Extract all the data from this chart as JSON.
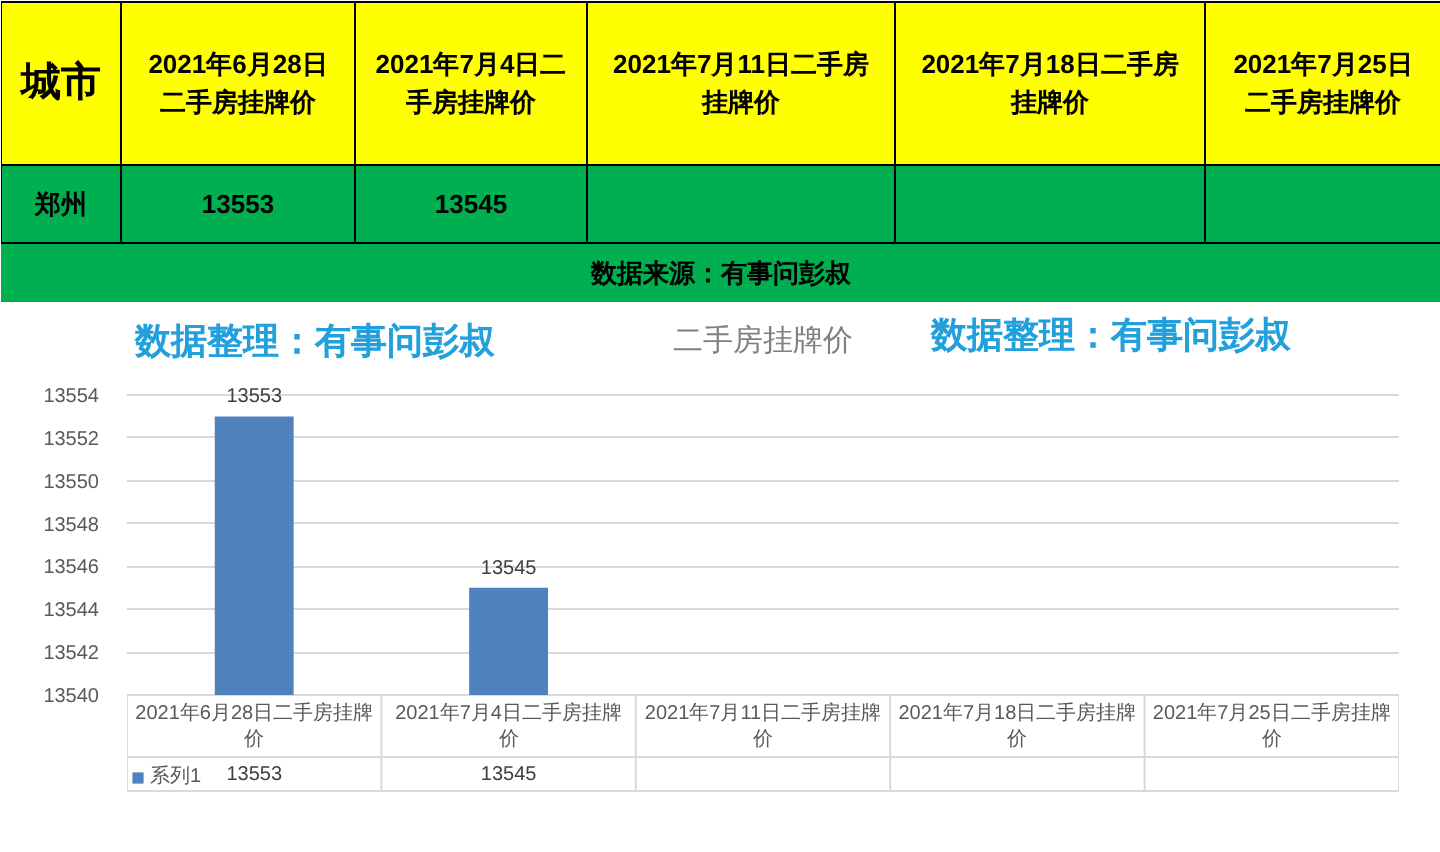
{
  "chart_data": [
    {
      "type": "other",
      "categories": [
        "2021年6月28日二手房挂牌价",
        "2021年7月4日二手房挂牌价",
        "2021年7月11日二手房挂牌价",
        "2021年7月18日二手房挂牌价",
        "2021年7月25日二手房挂牌价"
      ],
      "values": [
        13553,
        13545,
        null,
        null,
        null
      ],
      "data_labels": true,
      "annotations": [
        "城市",
        "郑州",
        "数据来源：有事问彭叔"
      ]
    },
    {
      "type": "bar",
      "title": "二手房挂牌价",
      "categories": [
        "2021年6月28日二手房挂牌价",
        "2021年7月4日二手房挂牌价",
        "2021年7月11日二手房挂牌价",
        "2021年7月18日二手房挂牌价",
        "2021年7月25日二手房挂牌价"
      ],
      "series": [
        {
          "name": "系列1",
          "color": "#4f81bd",
          "values": [
            13553,
            13545,
            null,
            null,
            null
          ],
          "value_labels": [
            "13553",
            "13545",
            null,
            null,
            null
          ]
        }
      ],
      "ylim": [
        13540,
        13554
      ],
      "yticks": [
        13540,
        13542,
        13544,
        13546,
        13548,
        13550,
        13552,
        13554
      ],
      "grid": "y",
      "data_labels": true,
      "legend": "bottom left",
      "annotations": [
        "数据整理：有事问彭叔",
        "数据整理：有事问彭叔"
      ]
    }
  ]
}
